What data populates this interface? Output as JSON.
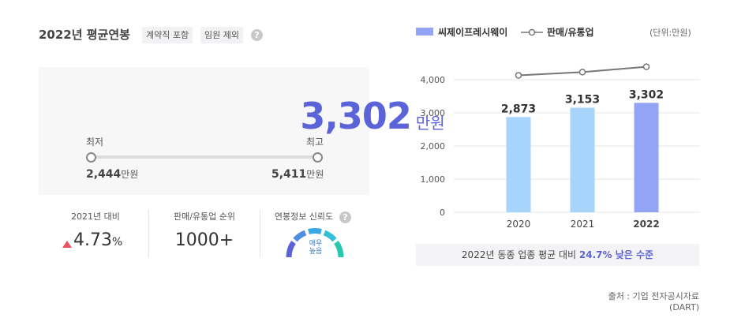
{
  "header": {
    "title": "2022년 평균연봉",
    "tags": [
      "계약직 포함",
      "임원 제외"
    ],
    "help_icon": "?"
  },
  "summary": {
    "average": "3,302",
    "average_unit": "만원",
    "min_label": "최저",
    "max_label": "최고",
    "min_value": "2,444",
    "max_value": "5,411",
    "value_unit": "만원"
  },
  "stats": {
    "yoy_label": "2021년 대비",
    "yoy_value": "4.73",
    "yoy_unit": "%",
    "rank_label": "판매/유통업 순위",
    "rank_value": "1000+",
    "reliability_label": "연봉정보 신뢰도",
    "reliability_line1": "매우",
    "reliability_line2": "높음",
    "up_color": "#e8545e"
  },
  "legend": {
    "bar_label": "씨제이프레시웨이",
    "line_label": "판매/유통업",
    "unit": "(단위:만원)"
  },
  "comparison": {
    "prefix": "2022년 동종 업종 평균 대비",
    "highlight": "24.7% 낮은 수준"
  },
  "source": "출처 : 기업 전자공시자료(DART)",
  "chart_data": {
    "type": "bar",
    "categories": [
      "2020",
      "2021",
      "2022"
    ],
    "series": [
      {
        "name": "씨제이프레시웨이",
        "type": "bar",
        "values": [
          2873,
          3153,
          3302
        ],
        "labels": [
          "2,873",
          "3,153",
          "3,302"
        ],
        "colors": [
          "#a6d4fb",
          "#a6d4fb",
          "#93a3f5"
        ]
      },
      {
        "name": "판매/유통업",
        "type": "line",
        "values": [
          4130,
          4230,
          4390
        ],
        "color": "#777777"
      }
    ],
    "ylim": [
      0,
      4500
    ],
    "yticks": [
      0,
      1000,
      2000,
      3000,
      4000
    ],
    "ytick_labels": [
      "0",
      "1,000",
      "2,000",
      "3,000",
      "4,000"
    ],
    "grid": true
  }
}
